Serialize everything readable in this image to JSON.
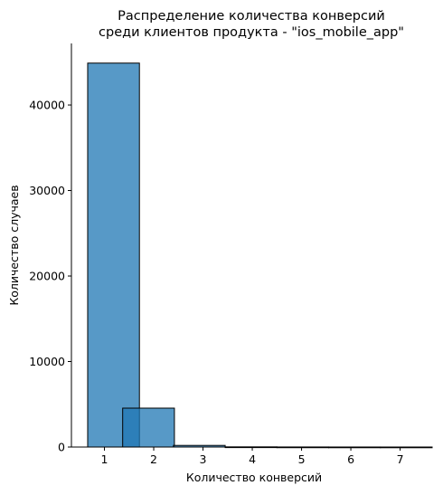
{
  "chart_data": {
    "type": "bar",
    "title_lines": [
      "Распределение количества конверсий",
      "среди клиентов продукта - \"ios_mobile_app\""
    ],
    "xlabel": "Количество конверсий",
    "ylabel": "Количество случаев",
    "x_ticks": [
      1,
      2,
      3,
      4,
      5,
      6,
      7
    ],
    "y_ticks": [
      0,
      10000,
      20000,
      30000,
      40000
    ],
    "xlim": [
      0.33,
      7.65
    ],
    "ylim": [
      0,
      47200
    ],
    "bin_width": 1.05,
    "bins": [
      {
        "start": 0.66,
        "value": 44900
      },
      {
        "start": 1.37,
        "value": 4550
      },
      {
        "start": 2.4,
        "value": 190
      },
      {
        "start": 3.45,
        "value": 20
      },
      {
        "start": 4.5,
        "value": 8
      },
      {
        "start": 5.55,
        "value": 4
      },
      {
        "start": 6.6,
        "value": 2
      }
    ],
    "spines": {
      "top": false,
      "right": false
    },
    "grid": false,
    "color": "#1f77b4"
  }
}
